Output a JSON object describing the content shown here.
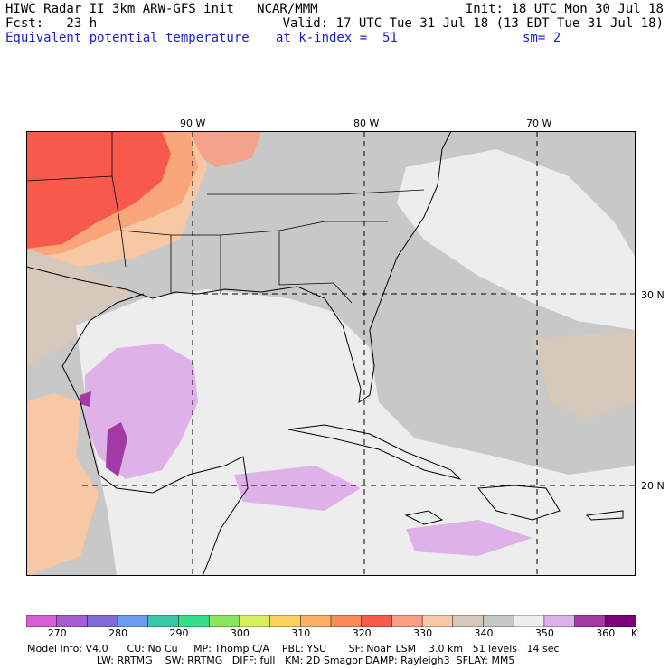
{
  "header": {
    "line1_left": "HIWC Radar II 3km ARW-GFS init   NCAR/MMM",
    "line1_right": "Init: 18 UTC Mon 30 Jul 18",
    "line2_left": "Fcst:   23 h",
    "line2_right": "Valid: 17 UTC Tue 31 Jul 18 (13 EDT Tue 31 Jul 18)",
    "line3_field": "Equivalent potential temperature",
    "line3_level": "at k-index =  51",
    "line3_smooth": "sm= 2"
  },
  "axes": {
    "lon_labels": [
      "90 W",
      "80 W",
      "70 W"
    ],
    "lat_labels": [
      "30 N",
      "20 N"
    ]
  },
  "colorbar": {
    "unit": "K",
    "ticks": [
      "270",
      "280",
      "290",
      "300",
      "310",
      "320",
      "330",
      "340",
      "350",
      "360"
    ],
    "colors": [
      "#d75ed7",
      "#a65cd2",
      "#7e6ad8",
      "#6a9df0",
      "#36c8a9",
      "#35e08d",
      "#8ce55d",
      "#d6f15a",
      "#f8d35c",
      "#fbb064",
      "#fb8a5a",
      "#f75a4d",
      "#f79d85",
      "#f8c8a4",
      "#d6c8bb",
      "#c8c8c8",
      "#ededed",
      "#dfb1e9",
      "#a23aa5",
      "#7c007c"
    ]
  },
  "footer": {
    "line1": "Model Info: V4.0      CU: No Cu     MP: Thomp C/A    PBL: YSU       SF: Noah LSM    3.0 km   51 levels   14 sec",
    "line2": "                      LW: RRTMG    SW: RRTMG   DIFF: full   KM: 2D Smagor DAMP: Rayleigh3  SFLAY: MM5"
  }
}
